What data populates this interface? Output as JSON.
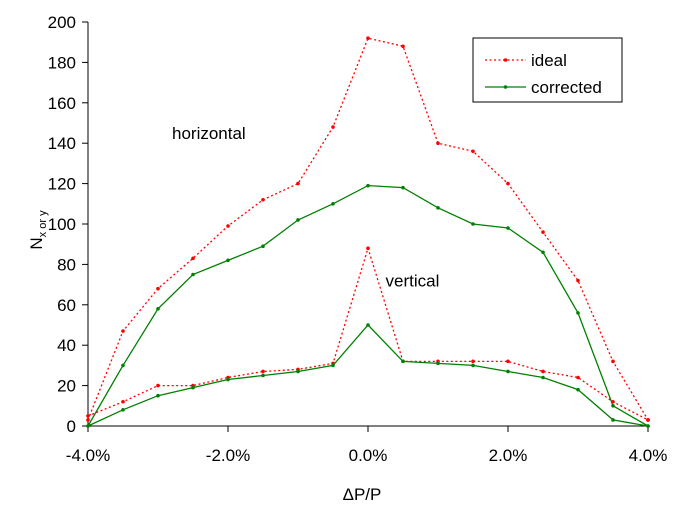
{
  "chart_data": {
    "type": "line",
    "xlabel": "ΔP/P",
    "ylabel": "N",
    "ylabel_sub": "x or y",
    "xlim": [
      -0.04,
      0.04
    ],
    "ylim": [
      0,
      200
    ],
    "x_ticks": [
      -0.04,
      -0.02,
      0.0,
      0.02,
      0.04
    ],
    "x_tick_labels": [
      "-4.0%",
      "-2.0%",
      "0.0%",
      "2.0%",
      "4.0%"
    ],
    "y_ticks": [
      0,
      20,
      40,
      60,
      80,
      100,
      120,
      140,
      160,
      180,
      200
    ],
    "y_tick_labels": [
      "0",
      "20",
      "40",
      "60",
      "80",
      "100",
      "120",
      "140",
      "160",
      "180",
      "200"
    ],
    "grid": false,
    "legend_position": "top-right",
    "legend": [
      {
        "label": "ideal",
        "color": "#ff0000",
        "style": "dotted"
      },
      {
        "label": "corrected",
        "color": "#008000",
        "style": "solid"
      }
    ],
    "annotations": [
      {
        "text": "horizontal",
        "x": -0.028,
        "y": 142
      },
      {
        "text": "vertical",
        "x": 0.0025,
        "y": 69
      }
    ],
    "series": [
      {
        "name": "ideal",
        "group": "horizontal",
        "color": "#ff0000",
        "style": "dotted",
        "x": [
          -0.04,
          -0.035,
          -0.03,
          -0.025,
          -0.02,
          -0.015,
          -0.01,
          -0.005,
          0.0,
          0.005,
          0.01,
          0.015,
          0.02,
          0.025,
          0.03,
          0.035,
          0.04
        ],
        "y": [
          3,
          47,
          68,
          83,
          99,
          112,
          120,
          148,
          192,
          188,
          140,
          136,
          120,
          96,
          72,
          32,
          3
        ]
      },
      {
        "name": "corrected",
        "group": "horizontal",
        "color": "#008000",
        "style": "solid",
        "x": [
          -0.04,
          -0.035,
          -0.03,
          -0.025,
          -0.02,
          -0.015,
          -0.01,
          -0.005,
          0.0,
          0.005,
          0.01,
          0.015,
          0.02,
          0.025,
          0.03,
          0.035,
          0.04
        ],
        "y": [
          0,
          30,
          58,
          75,
          82,
          89,
          102,
          110,
          119,
          118,
          108,
          100,
          98,
          86,
          56,
          10,
          0
        ]
      },
      {
        "name": "ideal",
        "group": "vertical",
        "color": "#ff0000",
        "style": "dotted",
        "x": [
          -0.04,
          -0.035,
          -0.03,
          -0.025,
          -0.02,
          -0.015,
          -0.01,
          -0.005,
          0.0,
          0.005,
          0.01,
          0.015,
          0.02,
          0.025,
          0.03,
          0.035,
          0.04
        ],
        "y": [
          5,
          12,
          20,
          20,
          24,
          27,
          28,
          31,
          88,
          32,
          32,
          32,
          32,
          27,
          24,
          12,
          3
        ]
      },
      {
        "name": "corrected",
        "group": "vertical",
        "color": "#008000",
        "style": "solid",
        "x": [
          -0.04,
          -0.035,
          -0.03,
          -0.025,
          -0.02,
          -0.015,
          -0.01,
          -0.005,
          0.0,
          0.005,
          0.01,
          0.015,
          0.02,
          0.025,
          0.03,
          0.035,
          0.04
        ],
        "y": [
          0,
          8,
          15,
          19,
          23,
          25,
          27,
          30,
          50,
          32,
          31,
          30,
          27,
          24,
          18,
          3,
          0
        ]
      }
    ]
  }
}
